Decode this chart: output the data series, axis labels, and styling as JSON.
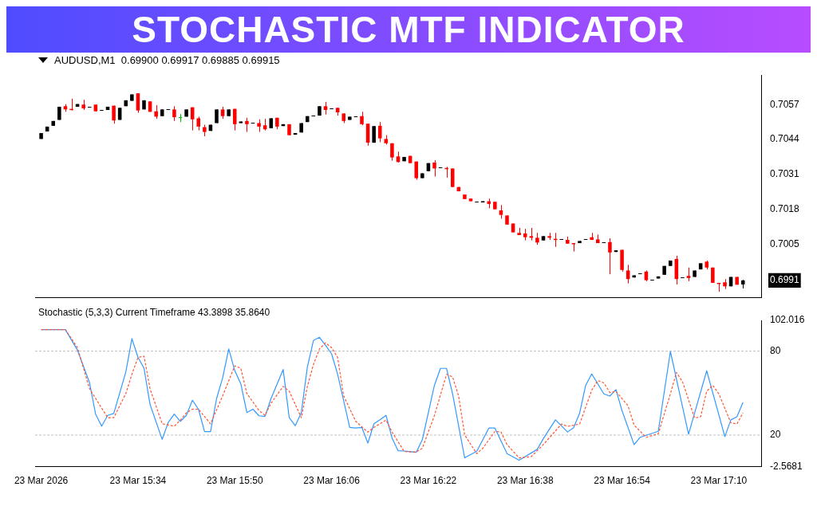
{
  "chart_data": [
    {
      "type": "candlestick",
      "title": "STOCHASTIC MTF INDICATOR",
      "subtitle": "AUDUSD,M1  0.69900 0.69917 0.69885 0.69915",
      "tick_labels": "y",
      "x": [
        "2026-03-23T15:18",
        "2026-03-23T15:19",
        "2026-03-23T15:20",
        "2026-03-23T15:21",
        "2026-03-23T15:22",
        "2026-03-23T15:23",
        "2026-03-23T15:24",
        "2026-03-23T15:25",
        "2026-03-23T15:26",
        "2026-03-23T15:27",
        "2026-03-23T15:28",
        "2026-03-23T15:29",
        "2026-03-23T15:30",
        "2026-03-23T15:31",
        "2026-03-23T15:32",
        "2026-03-23T15:33",
        "2026-03-23T15:34",
        "2026-03-23T15:35",
        "2026-03-23T15:36",
        "2026-03-23T15:37",
        "2026-03-23T15:38",
        "2026-03-23T15:39",
        "2026-03-23T15:40",
        "2026-03-23T15:41",
        "2026-03-23T15:42",
        "2026-03-23T15:43",
        "2026-03-23T15:44",
        "2026-03-23T15:45",
        "2026-03-23T15:46",
        "2026-03-23T15:47",
        "2026-03-23T15:48",
        "2026-03-23T15:49",
        "2026-03-23T15:50",
        "2026-03-23T15:51",
        "2026-03-23T15:52",
        "2026-03-23T15:53",
        "2026-03-23T15:54",
        "2026-03-23T15:55",
        "2026-03-23T15:56",
        "2026-03-23T15:57",
        "2026-03-23T15:58",
        "2026-03-23T15:59",
        "2026-03-23T16:00",
        "2026-03-23T16:01",
        "2026-03-23T16:02",
        "2026-03-23T16:03",
        "2026-03-23T16:04",
        "2026-03-23T16:05",
        "2026-03-23T16:06",
        "2026-03-23T16:07",
        "2026-03-23T16:08",
        "2026-03-23T16:09",
        "2026-03-23T16:10",
        "2026-03-23T16:11",
        "2026-03-23T16:12",
        "2026-03-23T16:13",
        "2026-03-23T16:14",
        "2026-03-23T16:15",
        "2026-03-23T16:16",
        "2026-03-23T16:17",
        "2026-03-23T16:18",
        "2026-03-23T16:19",
        "2026-03-23T16:20",
        "2026-03-23T16:21",
        "2026-03-23T16:22",
        "2026-03-23T16:23",
        "2026-03-23T16:24",
        "2026-03-23T16:25",
        "2026-03-23T16:26",
        "2026-03-23T16:27",
        "2026-03-23T16:28",
        "2026-03-23T16:29",
        "2026-03-23T16:30",
        "2026-03-23T16:31",
        "2026-03-23T16:32",
        "2026-03-23T16:33",
        "2026-03-23T16:34",
        "2026-03-23T16:35",
        "2026-03-23T16:36",
        "2026-03-23T16:37",
        "2026-03-23T16:38",
        "2026-03-23T16:39",
        "2026-03-23T16:40",
        "2026-03-23T16:41",
        "2026-03-23T16:42",
        "2026-03-23T16:43",
        "2026-03-23T16:44",
        "2026-03-23T16:45",
        "2026-03-23T16:46",
        "2026-03-23T16:47",
        "2026-03-23T16:48",
        "2026-03-23T16:49",
        "2026-03-23T16:50",
        "2026-03-23T16:51",
        "2026-03-23T16:52",
        "2026-03-23T16:53",
        "2026-03-23T16:54",
        "2026-03-23T16:55",
        "2026-03-23T16:56",
        "2026-03-23T16:57",
        "2026-03-23T16:58",
        "2026-03-23T16:59",
        "2026-03-23T17:00",
        "2026-03-23T17:01",
        "2026-03-23T17:02",
        "2026-03-23T17:03",
        "2026-03-23T17:04",
        "2026-03-23T17:05",
        "2026-03-23T17:06",
        "2026-03-23T17:07",
        "2026-03-23T17:08",
        "2026-03-23T17:09",
        "2026-03-23T17:10",
        "2026-03-23T17:11",
        "2026-03-23T17:12",
        "2026-03-23T17:13",
        "2026-03-23T17:14"
      ],
      "ohlc": [
        [
          0.70442,
          0.70464,
          0.70442,
          0.70464
        ],
        [
          0.7047,
          0.70488,
          0.7047,
          0.70488
        ],
        [
          0.70491,
          0.70509,
          0.70491,
          0.70509
        ],
        [
          0.70513,
          0.70562,
          0.70513,
          0.70562
        ],
        [
          0.70564,
          0.70572,
          0.70543,
          0.70552
        ],
        [
          0.70554,
          0.70592,
          0.70548,
          0.70552
        ],
        [
          0.70562,
          0.70572,
          0.70562,
          0.70572
        ],
        [
          0.7057,
          0.70588,
          0.7055,
          0.70556
        ],
        [
          0.70562,
          0.70562,
          0.70562,
          0.70562
        ],
        [
          0.7057,
          0.7057,
          0.70545,
          0.70545
        ],
        [
          0.7055,
          0.7055,
          0.7055,
          0.7055
        ],
        [
          0.7055,
          0.70562,
          0.7055,
          0.70562
        ],
        [
          0.70566,
          0.70566,
          0.70499,
          0.70511
        ],
        [
          0.70513,
          0.70558,
          0.70513,
          0.70558
        ],
        [
          0.70564,
          0.70586,
          0.70564,
          0.70586
        ],
        [
          0.70584,
          0.70608,
          0.70584,
          0.70608
        ],
        [
          0.70612,
          0.70612,
          0.70539,
          0.70548
        ],
        [
          0.70552,
          0.70586,
          0.70552,
          0.70586
        ],
        [
          0.70582,
          0.70582,
          0.70543,
          0.70543
        ],
        [
          0.70545,
          0.70568,
          0.70517,
          0.70525
        ],
        [
          0.70527,
          0.70552,
          0.70527,
          0.70552
        ],
        [
          0.70552,
          0.70552,
          0.70552,
          0.70552
        ],
        [
          0.70552,
          0.70564,
          0.70509,
          0.70523
        ],
        [
          0.70523,
          0.70535,
          0.70505,
          0.70523
        ],
        [
          0.70525,
          0.70552,
          0.70525,
          0.70552
        ],
        [
          0.7056,
          0.7056,
          0.70474,
          0.70515
        ],
        [
          0.70519,
          0.70525,
          0.70474,
          0.70488
        ],
        [
          0.70486,
          0.70495,
          0.70452,
          0.70468
        ],
        [
          0.70472,
          0.70495,
          0.70472,
          0.70495
        ],
        [
          0.70501,
          0.70552,
          0.70501,
          0.70552
        ],
        [
          0.70552,
          0.70562,
          0.70517,
          0.70527
        ],
        [
          0.70527,
          0.70552,
          0.70527,
          0.70552
        ],
        [
          0.70554,
          0.70554,
          0.70474,
          0.70497
        ],
        [
          0.70501,
          0.70507,
          0.70501,
          0.70507
        ],
        [
          0.70509,
          0.70521,
          0.70468,
          0.70497
        ],
        [
          0.70503,
          0.70503,
          0.70503,
          0.70503
        ],
        [
          0.70501,
          0.70515,
          0.70468,
          0.70488
        ],
        [
          0.70493,
          0.70517,
          0.70474,
          0.70478
        ],
        [
          0.70482,
          0.70519,
          0.70482,
          0.70519
        ],
        [
          0.70521,
          0.70521,
          0.70478,
          0.70488
        ],
        [
          0.7049,
          0.70497,
          0.7049,
          0.70497
        ],
        [
          0.70497,
          0.70497,
          0.70456,
          0.70456
        ],
        [
          0.70458,
          0.70464,
          0.70458,
          0.70464
        ],
        [
          0.70466,
          0.70501,
          0.70466,
          0.70501
        ],
        [
          0.70505,
          0.70527,
          0.70505,
          0.70527
        ],
        [
          0.70529,
          0.70529,
          0.70529,
          0.70529
        ],
        [
          0.70529,
          0.70564,
          0.70529,
          0.70564
        ],
        [
          0.70564,
          0.7058,
          0.70533,
          0.7055
        ],
        [
          0.70556,
          0.70556,
          0.70556,
          0.70556
        ],
        [
          0.70558,
          0.70558,
          0.70529,
          0.70541
        ],
        [
          0.70537,
          0.70537,
          0.70501,
          0.70509
        ],
        [
          0.70513,
          0.70525,
          0.70513,
          0.70525
        ],
        [
          0.70525,
          0.70525,
          0.70525,
          0.70525
        ],
        [
          0.70527,
          0.70543,
          0.70493,
          0.70497
        ],
        [
          0.70499,
          0.70499,
          0.70417,
          0.70428
        ],
        [
          0.70428,
          0.7049,
          0.70428,
          0.7049
        ],
        [
          0.70491,
          0.70505,
          0.7043,
          0.70444
        ],
        [
          0.70442,
          0.70456,
          0.70421,
          0.70426
        ],
        [
          0.70426,
          0.70426,
          0.70361,
          0.70373
        ],
        [
          0.70377,
          0.70395,
          0.70354,
          0.70356
        ],
        [
          0.70359,
          0.70375,
          0.70359,
          0.70375
        ],
        [
          0.70379,
          0.70379,
          0.70352,
          0.70352
        ],
        [
          0.70358,
          0.70358,
          0.7029,
          0.70296
        ],
        [
          0.70296,
          0.70314,
          0.70296,
          0.70314
        ],
        [
          0.70322,
          0.70352,
          0.70322,
          0.70352
        ],
        [
          0.70354,
          0.70363,
          0.70302,
          0.70332
        ],
        [
          0.70336,
          0.70336,
          0.70336,
          0.70336
        ],
        [
          0.70334,
          0.70338,
          0.70298,
          0.70333
        ],
        [
          0.70332,
          0.70332,
          0.70263,
          0.70263
        ],
        [
          0.70263,
          0.70263,
          0.70247,
          0.70247
        ],
        [
          0.70235,
          0.70235,
          0.70218,
          0.70218
        ],
        [
          0.7022,
          0.7022,
          0.7021,
          0.7021
        ],
        [
          0.7021,
          0.7021,
          0.7021,
          0.7021
        ],
        [
          0.70208,
          0.7021,
          0.70208,
          0.7021
        ],
        [
          0.7021,
          0.7022,
          0.70184,
          0.702
        ],
        [
          0.70208,
          0.70208,
          0.7018,
          0.7018
        ],
        [
          0.70176,
          0.70196,
          0.70145,
          0.70159
        ],
        [
          0.70157,
          0.70157,
          0.70123,
          0.70123
        ],
        [
          0.70127,
          0.70127,
          0.70094,
          0.70094
        ],
        [
          0.70092,
          0.70111,
          0.70084,
          0.70084
        ],
        [
          0.7009,
          0.70107,
          0.70064,
          0.70076
        ],
        [
          0.7008,
          0.70111,
          0.70064,
          0.70074
        ],
        [
          0.70074,
          0.70092,
          0.70048,
          0.70056
        ],
        [
          0.70064,
          0.7008,
          0.70064,
          0.7008
        ],
        [
          0.7008,
          0.70092,
          0.70066,
          0.70074
        ],
        [
          0.7007,
          0.70092,
          0.7004,
          0.70068
        ],
        [
          0.70068,
          0.70068,
          0.70068,
          0.70068
        ],
        [
          0.70066,
          0.70078,
          0.70052,
          0.70052
        ],
        [
          0.70054,
          0.70054,
          0.70023,
          0.70052
        ],
        [
          0.70054,
          0.70062,
          0.70054,
          0.70062
        ],
        [
          0.7007,
          0.7007,
          0.7007,
          0.7007
        ],
        [
          0.70076,
          0.70092,
          0.70066,
          0.70066
        ],
        [
          0.70068,
          0.70086,
          0.70054,
          0.70054
        ],
        [
          0.70056,
          0.70056,
          0.70056,
          0.70056
        ],
        [
          0.70058,
          0.70072,
          0.69938,
          0.70019
        ],
        [
          0.70021,
          0.70027,
          0.70021,
          0.70027
        ],
        [
          0.70029,
          0.70029,
          0.69948,
          0.69954
        ],
        [
          0.69952,
          0.69973,
          0.69904,
          0.6992
        ],
        [
          0.69926,
          0.69934,
          0.69926,
          0.69934
        ],
        [
          0.6994,
          0.6994,
          0.6994,
          0.6994
        ],
        [
          0.69948,
          0.69952,
          0.69912,
          0.69916
        ],
        [
          0.69918,
          0.69918,
          0.69918,
          0.69918
        ],
        [
          0.69922,
          0.6993,
          0.69922,
          0.6993
        ],
        [
          0.69936,
          0.69969,
          0.69936,
          0.69969
        ],
        [
          0.69969,
          0.69989,
          0.69969,
          0.69989
        ],
        [
          0.69995,
          0.70007,
          0.699,
          0.6992
        ],
        [
          0.69928,
          0.69928,
          0.69928,
          0.69928
        ],
        [
          0.69932,
          0.69963,
          0.69912,
          0.69924
        ],
        [
          0.69928,
          0.69952,
          0.69928,
          0.69952
        ],
        [
          0.69956,
          0.69979,
          0.69956,
          0.69979
        ],
        [
          0.69985,
          0.69989,
          0.69956,
          0.69963
        ],
        [
          0.69963,
          0.69963,
          0.69906,
          0.69906
        ],
        [
          0.69906,
          0.69906,
          0.69873,
          0.69902
        ],
        [
          0.69908,
          0.6992,
          0.69883,
          0.69893
        ],
        [
          0.69893,
          0.69928,
          0.69893,
          0.69928
        ],
        [
          0.69928,
          0.69928,
          0.69899,
          0.69899
        ],
        [
          0.699,
          0.69917,
          0.69885,
          0.69915
        ]
      ],
      "colors": [
        "#000000",
        "#000000",
        "#000000",
        "#000000",
        "#ff0000",
        "#ff0000",
        "#000000",
        "#ff0000",
        "#000000",
        "#ff0000",
        "#000000",
        "#000000",
        "#ff0000",
        "#000000",
        "#000000",
        "#000000",
        "#ff0000",
        "#000000",
        "#ff0000",
        "#ff0000",
        "#000000",
        "#000000",
        "#ff0000",
        "#00c000",
        "#000000",
        "#ff0000",
        "#ff0000",
        "#ff0000",
        "#000000",
        "#000000",
        "#ff0000",
        "#000000",
        "#ff0000",
        "#000000",
        "#ff0000",
        "#000000",
        "#ff0000",
        "#ff0000",
        "#000000",
        "#ff0000",
        "#000000",
        "#ff0000",
        "#000000",
        "#000000",
        "#000000",
        "#000000",
        "#000000",
        "#ff0000",
        "#000000",
        "#ff0000",
        "#ff0000",
        "#000000",
        "#000000",
        "#ff0000",
        "#ff0000",
        "#000000",
        "#ff0000",
        "#ff0000",
        "#ff0000",
        "#ff0000",
        "#000000",
        "#ff0000",
        "#ff0000",
        "#000000",
        "#000000",
        "#ff0000",
        "#000000",
        "#ff0000",
        "#ff0000",
        "#ff0000",
        "#ff0000",
        "#ff0000",
        "#000000",
        "#000000",
        "#ff0000",
        "#ff0000",
        "#ff0000",
        "#ff0000",
        "#ff0000",
        "#ff0000",
        "#ff0000",
        "#ff0000",
        "#ff0000",
        "#000000",
        "#ff0000",
        "#ff0000",
        "#000000",
        "#ff0000",
        "#ff0000",
        "#000000",
        "#000000",
        "#ff0000",
        "#ff0000",
        "#000000",
        "#ff0000",
        "#000000",
        "#ff0000",
        "#ff0000",
        "#000000",
        "#000000",
        "#ff0000",
        "#000000",
        "#000000",
        "#000000",
        "#000000",
        "#ff0000",
        "#000000",
        "#ff0000",
        "#000000",
        "#000000",
        "#ff0000",
        "#ff0000",
        "#ff0000",
        "#ff0000",
        "#000000",
        "#ff0000",
        "#000000"
      ],
      "xlim": [
        "2026-03-23T15:17",
        "2026-03-23T17:17"
      ],
      "ylim": [
        0.6985,
        0.7068
      ],
      "yticks": [
        0.7005,
        0.7018,
        0.7031,
        0.7044,
        0.7057,
        {
          "value": 0.69915,
          "label": "0.6991"
        }
      ]
    },
    {
      "type": "line",
      "title": "Stochastic (5,3,3) Current Timeframe 43.3898 35.8640",
      "marker": "none",
      "xlim": [
        "2026-03-23T15:17",
        "2026-03-23T17:17"
      ],
      "xticks": [
        {
          "value": "2026-03-23T15:18",
          "label": "23 Mar 2026"
        },
        {
          "value": "2026-03-23T15:34",
          "label": "23 Mar 15:34"
        },
        {
          "value": "2026-03-23T15:50",
          "label": "23 Mar 15:50"
        },
        {
          "value": "2026-03-23T16:06",
          "label": "23 Mar 16:06"
        },
        {
          "value": "2026-03-23T16:22",
          "label": "23 Mar 16:22"
        },
        {
          "value": "2026-03-23T16:38",
          "label": "23 Mar 16:38"
        },
        {
          "value": "2026-03-23T16:54",
          "label": "23 Mar 16:54"
        },
        {
          "value": "2026-03-23T17:10",
          "label": "23 Mar 17:10"
        }
      ],
      "ylim": [
        -2.5681,
        102.016
      ],
      "yticks": [
        -2.5681,
        20,
        80,
        102.016
      ],
      "ref_lines": [
        {
          "axis": "y",
          "value": 80,
          "color": "#c0c0c0",
          "line_style": "dashed"
        },
        {
          "axis": "y",
          "value": 20,
          "color": "#c0c0c0",
          "line_style": "dashed"
        }
      ],
      "series": [
        {
          "color": "#3399ff",
          "line_style": "solid",
          "x": [
            "2026-03-23T15:18",
            "2026-03-23T15:22",
            "2026-03-23T15:24",
            "2026-03-23T15:26",
            "2026-03-23T15:27",
            "2026-03-23T15:28",
            "2026-03-23T15:29",
            "2026-03-23T15:30",
            "2026-03-23T15:32",
            "2026-03-23T15:33",
            "2026-03-23T15:34",
            "2026-03-23T15:35",
            "2026-03-23T15:36",
            "2026-03-23T15:38",
            "2026-03-23T15:39",
            "2026-03-23T15:40",
            "2026-03-23T15:41",
            "2026-03-23T15:42",
            "2026-03-23T15:43",
            "2026-03-23T15:44",
            "2026-03-23T15:45",
            "2026-03-23T15:46",
            "2026-03-23T15:47",
            "2026-03-23T15:48",
            "2026-03-23T15:49",
            "2026-03-23T15:50",
            "2026-03-23T15:51",
            "2026-03-23T15:52",
            "2026-03-23T15:53",
            "2026-03-23T15:54",
            "2026-03-23T15:55",
            "2026-03-23T15:56",
            "2026-03-23T15:58",
            "2026-03-23T15:59",
            "2026-03-23T16:00",
            "2026-03-23T16:01",
            "2026-03-23T16:02",
            "2026-03-23T16:03",
            "2026-03-23T16:04",
            "2026-03-23T16:05",
            "2026-03-23T16:06",
            "2026-03-23T16:07",
            "2026-03-23T16:09",
            "2026-03-23T16:10",
            "2026-03-23T16:11",
            "2026-03-23T16:12",
            "2026-03-23T16:13",
            "2026-03-23T16:14",
            "2026-03-23T16:15",
            "2026-03-23T16:16",
            "2026-03-23T16:17",
            "2026-03-23T16:18",
            "2026-03-23T16:20",
            "2026-03-23T16:21",
            "2026-03-23T16:23",
            "2026-03-23T16:24",
            "2026-03-23T16:25",
            "2026-03-23T16:26",
            "2026-03-23T16:28",
            "2026-03-23T16:30",
            "2026-03-23T16:32",
            "2026-03-23T16:33",
            "2026-03-23T16:35",
            "2026-03-23T16:37",
            "2026-03-23T16:40",
            "2026-03-23T16:41",
            "2026-03-23T16:43",
            "2026-03-23T16:45",
            "2026-03-23T16:46",
            "2026-03-23T16:47",
            "2026-03-23T16:48",
            "2026-03-23T16:49",
            "2026-03-23T16:51",
            "2026-03-23T16:52",
            "2026-03-23T16:53",
            "2026-03-23T16:54",
            "2026-03-23T16:56",
            "2026-03-23T16:57",
            "2026-03-23T17:00",
            "2026-03-23T17:02",
            "2026-03-23T17:05",
            "2026-03-23T17:08",
            "2026-03-23T17:11",
            "2026-03-23T17:12",
            "2026-03-23T17:13",
            "2026-03-23T17:14"
          ],
          "values": [
            95.4,
            95.4,
            80.7,
            57.4,
            35.0,
            26.4,
            34.1,
            35.4,
            65.2,
            89.0,
            75.5,
            67.8,
            41.9,
            16.9,
            29.0,
            35.0,
            29.8,
            34.1,
            44.9,
            38.5,
            22.5,
            22.5,
            46.2,
            60.9,
            81.6,
            66.1,
            56.6,
            36.1,
            38.5,
            33.8,
            33.3,
            46.2,
            66.9,
            32.4,
            26.7,
            36.1,
            68.6,
            87.6,
            89.9,
            84.1,
            78.1,
            63.5,
            25.5,
            25.0,
            25.5,
            14.3,
            28.1,
            31.0,
            34.1,
            17.9,
            8.8,
            8.6,
            7.7,
            16.7,
            55.6,
            67.7,
            67.7,
            49.5,
            3.7,
            8.4,
            25.0,
            25.0,
            6.7,
            2.0,
            9.8,
            17.5,
            30.9,
            22.2,
            25.3,
            35.7,
            55.6,
            63.7,
            49.5,
            47.9,
            52.5,
            37.5,
            13.2,
            18.4,
            22.7,
            79.8,
            20.6,
            66.0,
            18.9,
            30.9,
            33.1,
            43.4
          ]
        },
        {
          "color": "#ff5533",
          "line_style": "dashed",
          "x": [
            "2026-03-23T15:18",
            "2026-03-23T15:22",
            "2026-03-23T15:24",
            "2026-03-23T15:26",
            "2026-03-23T15:28",
            "2026-03-23T15:29",
            "2026-03-23T15:30",
            "2026-03-23T15:32",
            "2026-03-23T15:33",
            "2026-03-23T15:34",
            "2026-03-23T15:35",
            "2026-03-23T15:36",
            "2026-03-23T15:38",
            "2026-03-23T15:40",
            "2026-03-23T15:41",
            "2026-03-23T15:42",
            "2026-03-23T15:43",
            "2026-03-23T15:44",
            "2026-03-23T15:46",
            "2026-03-23T15:48",
            "2026-03-23T15:50",
            "2026-03-23T15:51",
            "2026-03-23T15:52",
            "2026-03-23T15:54",
            "2026-03-23T15:55",
            "2026-03-23T15:56",
            "2026-03-23T15:58",
            "2026-03-23T15:59",
            "2026-03-23T16:01",
            "2026-03-23T16:02",
            "2026-03-23T16:03",
            "2026-03-23T16:04",
            "2026-03-23T16:05",
            "2026-03-23T16:06",
            "2026-03-23T16:07",
            "2026-03-23T16:08",
            "2026-03-23T16:10",
            "2026-03-23T16:12",
            "2026-03-23T16:13",
            "2026-03-23T16:15",
            "2026-03-23T16:16",
            "2026-03-23T16:18",
            "2026-03-23T16:19",
            "2026-03-23T16:20",
            "2026-03-23T16:21",
            "2026-03-23T16:23",
            "2026-03-23T16:25",
            "2026-03-23T16:26",
            "2026-03-23T16:27",
            "2026-03-23T16:28",
            "2026-03-23T16:30",
            "2026-03-23T16:31",
            "2026-03-23T16:33",
            "2026-03-23T16:34",
            "2026-03-23T16:35",
            "2026-03-23T16:37",
            "2026-03-23T16:39",
            "2026-03-23T16:41",
            "2026-03-23T16:44",
            "2026-03-23T16:45",
            "2026-03-23T16:47",
            "2026-03-23T16:49",
            "2026-03-23T16:50",
            "2026-03-23T16:51",
            "2026-03-23T16:52",
            "2026-03-23T16:53",
            "2026-03-23T16:55",
            "2026-03-23T16:56",
            "2026-03-23T16:58",
            "2026-03-23T17:00",
            "2026-03-23T17:02",
            "2026-03-23T17:03",
            "2026-03-23T17:04",
            "2026-03-23T17:06",
            "2026-03-23T17:07",
            "2026-03-23T17:08",
            "2026-03-23T17:09",
            "2026-03-23T17:10",
            "2026-03-23T17:12",
            "2026-03-23T17:13",
            "2026-03-23T17:14"
          ],
          "values": [
            95.4,
            95.4,
            82.5,
            53.1,
            39.3,
            32.4,
            32.4,
            49.7,
            63.5,
            75.5,
            76.4,
            53.1,
            28.1,
            26.4,
            30.7,
            35.9,
            38.5,
            38.5,
            28.1,
            48.0,
            69.5,
            67.8,
            49.7,
            37.6,
            34.1,
            42.8,
            54.8,
            51.4,
            32.4,
            54.8,
            70.4,
            81.6,
            85.9,
            82.5,
            75.5,
            48.0,
            29.8,
            22.1,
            25.5,
            30.7,
            22.1,
            8.3,
            8.0,
            8.0,
            10.6,
            34.0,
            63.4,
            61.6,
            47.8,
            20.1,
            6.7,
            10.6,
            22.7,
            22.2,
            13.2,
            3.7,
            4.6,
            13.2,
            27.9,
            26.2,
            27.9,
            52.1,
            59.0,
            57.3,
            50.4,
            51.3,
            40.9,
            27.1,
            18.4,
            21.0,
            49.5,
            64.8,
            58.2,
            32.2,
            33.1,
            51.3,
            55.6,
            49.5,
            28.8,
            27.9,
            35.9
          ]
        }
      ]
    }
  ]
}
